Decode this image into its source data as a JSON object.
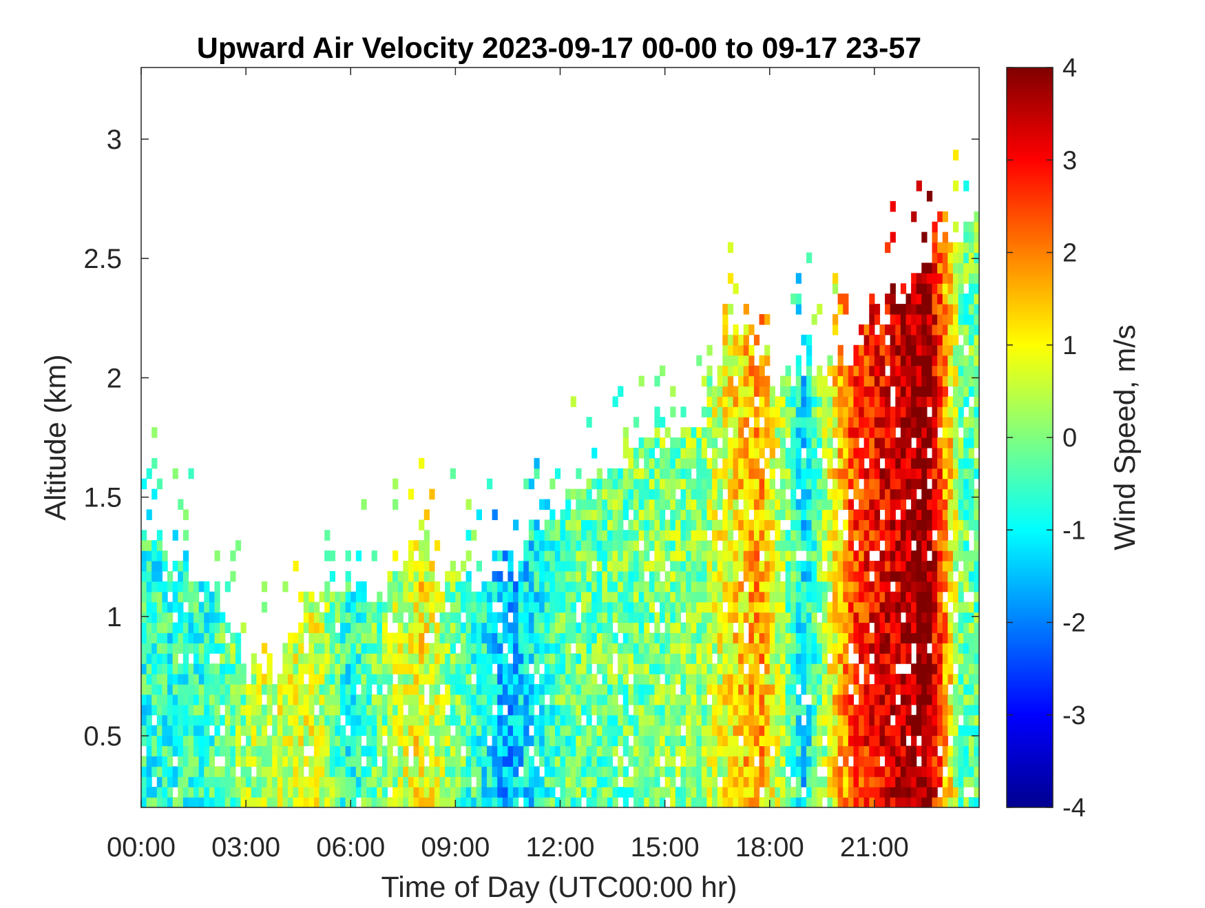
{
  "chart_data": {
    "type": "heatmap",
    "title": "Upward Air Velocity 2023-09-17 00-00 to 09-17 23-57",
    "xlabel": "Time of Day (UTC00:00 hr)",
    "ylabel": "Altitude (km)",
    "colorbar_label": "Wind Speed, m/s",
    "colormap": "jet",
    "xlim": [
      0,
      24
    ],
    "ylim": [
      0.2,
      3.3
    ],
    "clim": [
      -4,
      4
    ],
    "x_ticks": [
      0,
      3,
      6,
      9,
      12,
      15,
      18,
      21
    ],
    "x_tick_labels": [
      "00:00",
      "03:00",
      "06:00",
      "09:00",
      "12:00",
      "15:00",
      "18:00",
      "21:00"
    ],
    "y_ticks": [
      0.5,
      1,
      1.5,
      2,
      2.5,
      3
    ],
    "y_tick_labels": [
      "0.5",
      "1",
      "1.5",
      "2",
      "2.5",
      "3"
    ],
    "colorbar_ticks": [
      4,
      3,
      2,
      1,
      0,
      -1,
      -2,
      -3,
      -4
    ],
    "colorbar_tick_labels": [
      "4",
      "3",
      "2",
      "1",
      "0",
      "-1",
      "-2",
      "-3",
      "-4"
    ],
    "grid": false,
    "data_top_km_by_hour": {
      "hours": [
        0,
        1,
        2,
        3,
        4,
        5,
        6,
        7,
        8,
        9,
        10,
        11,
        12,
        13,
        14,
        15,
        16,
        17,
        18,
        19,
        20,
        21,
        22,
        23,
        24
      ],
      "top_km": [
        1.3,
        1.25,
        1.15,
        0.8,
        0.8,
        1.1,
        1.1,
        1.1,
        1.3,
        1.15,
        1.1,
        1.3,
        1.45,
        1.55,
        1.65,
        1.7,
        1.8,
        2.3,
        2.0,
        2.0,
        2.05,
        2.2,
        2.4,
        2.6,
        2.6
      ]
    },
    "mean_w_by_hour": {
      "hours": [
        0,
        2,
        3.5,
        5,
        6,
        8,
        10.5,
        12,
        14,
        16,
        17.7,
        19,
        20.4,
        22.5,
        23.5
      ],
      "w_ms": [
        -0.7,
        -0.6,
        0.5,
        0.6,
        -0.8,
        1.0,
        -1.6,
        -0.3,
        -0.1,
        0.1,
        1.8,
        -1.2,
        2.5,
        4.0,
        -0.2
      ]
    }
  }
}
